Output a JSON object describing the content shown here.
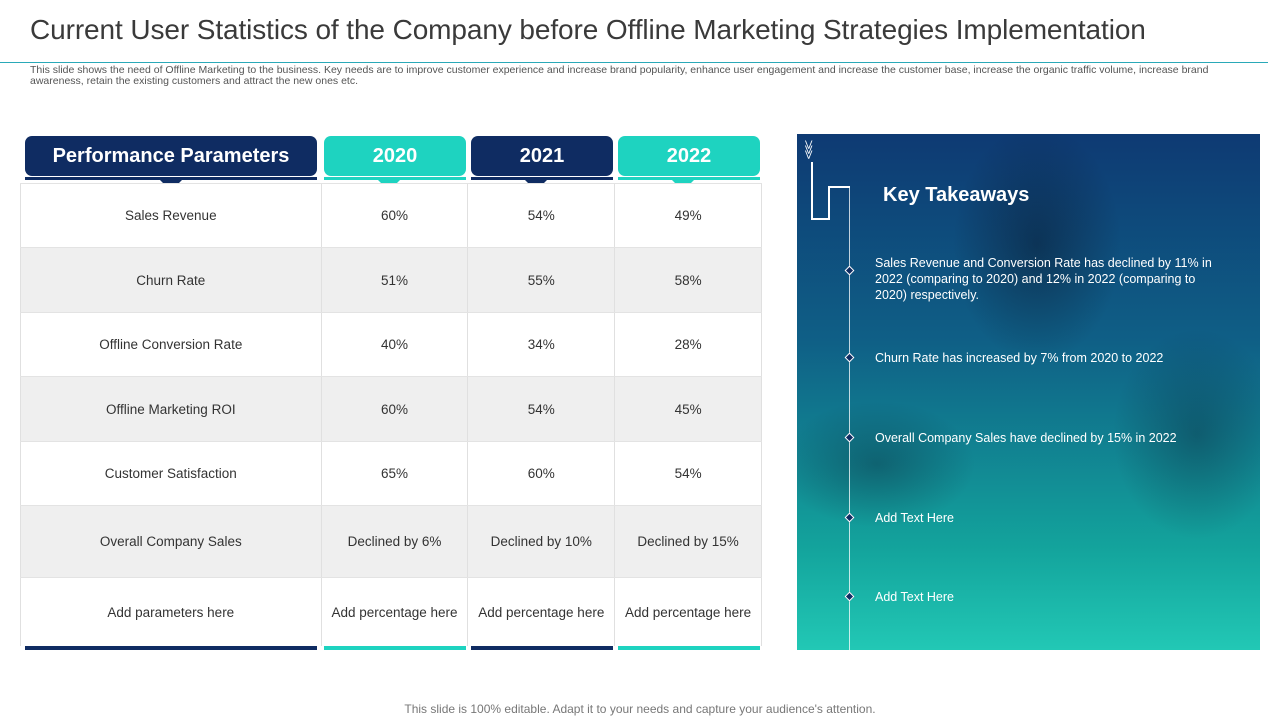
{
  "title": "Current User Statistics of the Company before Offline Marketing Strategies Implementation",
  "subtitle": "This slide shows the need of Offline Marketing to the business. Key needs are to improve customer experience and increase brand popularity, enhance user engagement and increase the customer base, increase the organic traffic volume, increase brand awareness, retain the existing customers and attract the new ones etc.",
  "table": {
    "headers": [
      "Performance Parameters",
      "2020",
      "2021",
      "2022"
    ],
    "rows": [
      [
        "Sales Revenue",
        "60%",
        "54%",
        "49%"
      ],
      [
        "Churn Rate",
        "51%",
        "55%",
        "58%"
      ],
      [
        "Offline  Conversion  Rate",
        "40%",
        "34%",
        "28%"
      ],
      [
        "Offline Marketing ROI",
        "60%",
        "54%",
        "45%"
      ],
      [
        "Customer Satisfaction",
        "65%",
        "60%",
        "54%"
      ],
      [
        "Overall  Company Sales",
        "Declined by 6%",
        "Declined by 10%",
        "Declined by 15%"
      ],
      [
        "Add parameters  here",
        "Add percentage  here",
        "Add percentage  here",
        "Add percentage  here"
      ]
    ]
  },
  "takeaways": {
    "title": "Key Takeaways",
    "items": [
      "Sales Revenue  and Conversion  Rate has declined by 11% in 2022 (comparing to 2020) and 12% in 2022 (comparing to 2020) respectively.",
      "Churn Rate has increased  by 7% from 2020 to 2022",
      "Overall  Company Sales have declined by 15% in 2022",
      "Add Text Here",
      "Add Text Here"
    ]
  },
  "footer": "This slide is 100% editable. Adapt it to your needs and capture your audience's attention.",
  "colors": {
    "navy": "#0f2c62",
    "teal": "#1ed3c0",
    "accent_line": "#2aa9b8"
  }
}
